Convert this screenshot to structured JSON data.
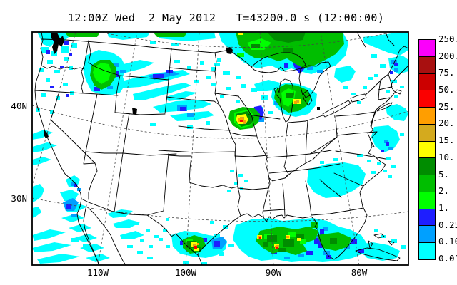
{
  "title": "12:00Z Wed  2 May 2012   T=43200.0 s (12:00:00)",
  "map": {
    "lat_labels": [
      "40N",
      "30N"
    ],
    "lon_labels": [
      "110W",
      "100W",
      "90W",
      "80W"
    ]
  },
  "colorbar": {
    "labels_top_to_bottom": [
      "250.",
      "200.",
      "75.",
      "50.",
      "25.",
      "20.",
      "15.",
      "10.",
      "5.",
      "2.",
      "1.",
      "0.25",
      "0.10",
      "0.01"
    ],
    "colors_top_to_bottom": [
      "#FB00FB",
      "#A81010",
      "#CC0000",
      "#FB0000",
      "#FF9E00",
      "#D4AA1E",
      "#FFFF00",
      "#008C00",
      "#00BE00",
      "#00FF00",
      "#1E1EFF",
      "#00A0FF",
      "#00FFFF"
    ]
  },
  "palette": {
    "trace_cyan": "#00FFFF",
    "light_blue": "#00A0FF",
    "blue": "#1E1EFF",
    "lime": "#00FF00",
    "green": "#00BE00",
    "dark_green": "#008C00",
    "yellow": "#FFFF00",
    "gold": "#D4AA1E",
    "orange": "#FF9E00",
    "red": "#FB0000",
    "land_line": "#000000",
    "background": "#FFFFFF"
  }
}
